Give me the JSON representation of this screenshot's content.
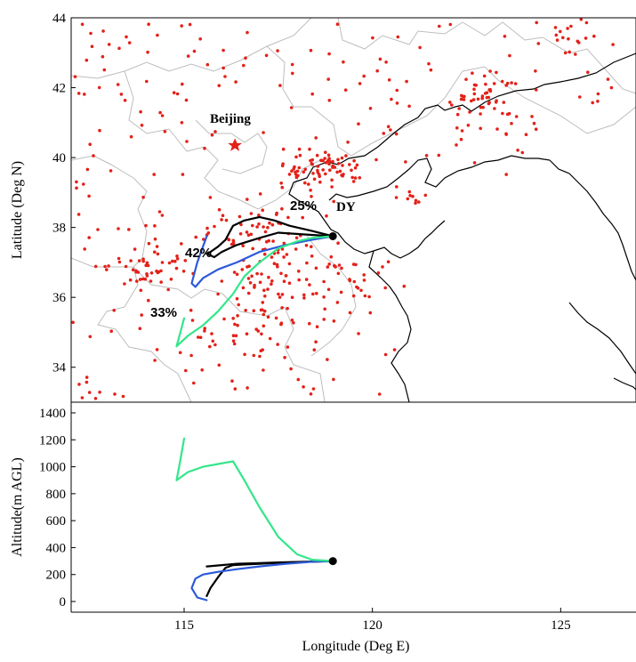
{
  "map": {
    "ylabel": "Latitude (Deg N)",
    "lat_range": [
      33,
      44
    ],
    "lon_range": [
      112,
      127
    ],
    "lat_ticks": [
      "34",
      "36",
      "38",
      "40",
      "42",
      "44"
    ],
    "city_label": "Beijing",
    "site_label": "DY",
    "cluster_labels": [
      "25%",
      "42%",
      "33%"
    ]
  },
  "chart_data": {
    "type": "line",
    "xlabel": "Longitude (Deg E)",
    "ylabel": "Altitude(m AGL)",
    "xlim": [
      112,
      127
    ],
    "ylim": [
      0,
      1400
    ],
    "x_ticks": [
      "115",
      "120",
      "125"
    ],
    "y_ticks": [
      "0",
      "200",
      "400",
      "600",
      "800",
      "1000",
      "1200",
      "1400"
    ],
    "origin": {
      "lon": 118.95,
      "lat": 37.75,
      "alt": 300
    },
    "series": [
      {
        "percent": "25%",
        "color": "#000000",
        "lon": [
          118.95,
          118.2,
          117.5,
          117.0,
          116.4,
          116.0,
          115.8,
          115.6
        ],
        "lat": [
          37.75,
          37.8,
          37.85,
          37.7,
          37.5,
          37.3,
          37.15,
          37.25
        ],
        "alt": [
          300,
          295,
          290,
          285,
          280,
          270,
          265,
          260
        ]
      },
      {
        "percent": "42%",
        "color": "#000000",
        "lon": [
          118.95,
          118.4,
          117.8,
          117.4,
          117.0,
          116.6,
          116.3,
          116.2,
          116.1,
          115.9,
          115.7,
          115.6
        ],
        "lat": [
          37.75,
          37.9,
          38.05,
          38.2,
          38.3,
          38.2,
          38.05,
          37.85,
          37.65,
          37.45,
          37.3,
          37.25
        ],
        "alt": [
          300,
          295,
          290,
          285,
          280,
          275,
          270,
          260,
          250,
          180,
          100,
          40
        ]
      },
      {
        "percent": "42%",
        "color": "#2b59d9",
        "lon": [
          118.95,
          118.4,
          117.7,
          117.0,
          116.4,
          115.9,
          115.5,
          115.3,
          115.2,
          115.35,
          115.6
        ],
        "lat": [
          37.75,
          37.65,
          37.5,
          37.3,
          37.0,
          36.8,
          36.55,
          36.3,
          36.4,
          37.0,
          37.75
        ],
        "alt": [
          300,
          295,
          280,
          260,
          240,
          220,
          200,
          170,
          100,
          30,
          10
        ]
      },
      {
        "percent": "33%",
        "color": "#33e68a",
        "lon": [
          118.95,
          118.4,
          118.0,
          117.5,
          117.0,
          116.6,
          116.3,
          115.9,
          115.5,
          115.1,
          114.8,
          114.9,
          115.0
        ],
        "lat": [
          37.75,
          37.7,
          37.6,
          37.4,
          37.0,
          36.6,
          36.1,
          35.6,
          35.2,
          34.9,
          34.6,
          35.0,
          35.4
        ],
        "alt": [
          300,
          310,
          350,
          480,
          700,
          900,
          1040,
          1020,
          1000,
          960,
          900,
          1050,
          1210
        ]
      }
    ]
  }
}
